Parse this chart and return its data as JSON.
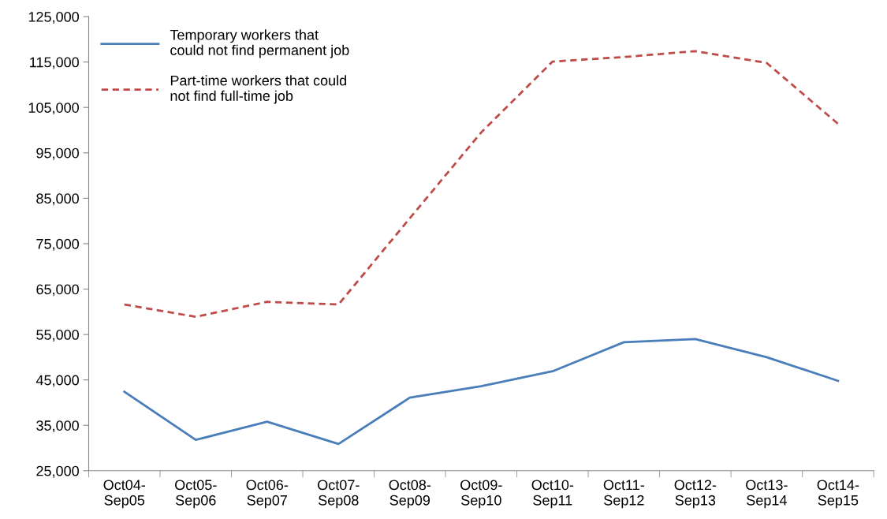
{
  "chart_data": {
    "type": "line",
    "categories": [
      "Oct04-\nSep05",
      "Oct05-\nSep06",
      "Oct06-\nSep07",
      "Oct07-\nSep08",
      "Oct08-\nSep09",
      "Oct09-\nSep10",
      "Oct10-\nSep11",
      "Oct11-\nSep12",
      "Oct12-\nSep13",
      "Oct13-\nSep14",
      "Oct14-\nSep15"
    ],
    "series": [
      {
        "name": "Temporary workers that\ncould not find permanent job",
        "color": "#4a7ebb",
        "line_style": "solid",
        "values": [
          42400,
          31800,
          35800,
          30900,
          41100,
          43600,
          46900,
          53300,
          54000,
          50000,
          44800
        ]
      },
      {
        "name": "Part-time workers that could\nnot find full-time job",
        "color": "#be4b48",
        "line_style": "dashed",
        "values": [
          61600,
          58900,
          62200,
          61600,
          80600,
          99500,
          115100,
          116100,
          117400,
          114800,
          101400
        ]
      }
    ],
    "ylim": [
      25000,
      125000
    ],
    "yticks": [
      {
        "value": 25000,
        "label": "25,000"
      },
      {
        "value": 35000,
        "label": "35,000"
      },
      {
        "value": 45000,
        "label": "45,000"
      },
      {
        "value": 55000,
        "label": "55,000"
      },
      {
        "value": 65000,
        "label": "65,000"
      },
      {
        "value": 75000,
        "label": "75,000"
      },
      {
        "value": 85000,
        "label": "85,000"
      },
      {
        "value": 95000,
        "label": "95,000"
      },
      {
        "value": 105000,
        "label": "105,000"
      },
      {
        "value": 115000,
        "label": "115,000"
      },
      {
        "value": 125000,
        "label": "125,000"
      }
    ],
    "grid": false,
    "legend": "top left",
    "marker": "none"
  }
}
